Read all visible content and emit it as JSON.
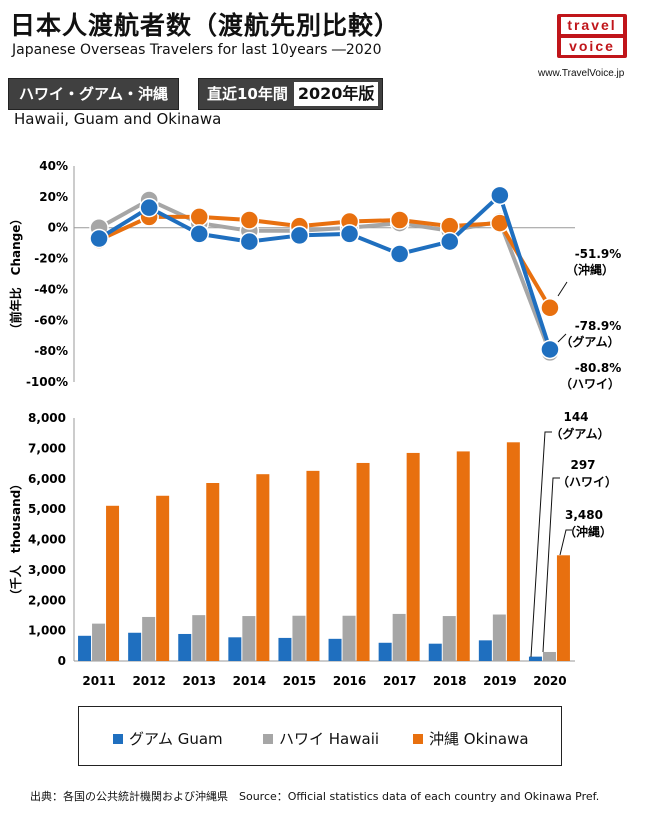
{
  "header": {
    "title": "日本人渡航者数（渡航先別比較）",
    "subtitle": "Japanese Overseas Travelers for last 10years ―2020",
    "region_badge": "ハワイ・グアム・沖縄",
    "period_badge": "直近10年間",
    "edition_badge": "2020年版",
    "region_en": "Hawaii, Guam and Okinawa",
    "logo_line1": "travel",
    "logo_line2": "voice",
    "website": "www.TravelVoice.jp"
  },
  "colors": {
    "guam": "#1f6fbf",
    "hawaii": "#a6a6a6",
    "okinawa": "#e8700f"
  },
  "chart_data": [
    {
      "type": "line",
      "ylabel": "（前年比　Change）",
      "ylim": [
        -100,
        40
      ],
      "yticks": [
        "40%",
        "20%",
        "0%",
        "-20%",
        "-40%",
        "-60%",
        "-80%",
        "-100%"
      ],
      "grid": false,
      "x": [
        "2011",
        "2012",
        "2013",
        "2014",
        "2015",
        "2016",
        "2017",
        "2018",
        "2019",
        "2020"
      ],
      "series": [
        {
          "name": "ハワイ Hawaii",
          "values": [
            0,
            18,
            3,
            -2,
            -2,
            0,
            3,
            -2,
            4,
            -80.8
          ]
        },
        {
          "name": "沖縄 Okinawa",
          "values": [
            -8,
            7,
            7,
            5,
            1,
            4,
            5,
            1,
            3,
            -51.9
          ]
        },
        {
          "name": "グアム Guam",
          "values": [
            -7,
            13,
            -4,
            -9,
            -5,
            -4,
            -17,
            -9,
            21,
            -78.9
          ]
        }
      ],
      "annotations": [
        {
          "value": "-51.9%",
          "label": "（沖縄）"
        },
        {
          "value": "-78.9%",
          "label": "（グアム）"
        },
        {
          "value": "-80.8%",
          "label": "（ハワイ）"
        }
      ]
    },
    {
      "type": "bar",
      "ylabel": "（千人　thousand）",
      "ylim": [
        0,
        8000
      ],
      "yticks": [
        "0",
        "1,000",
        "2,000",
        "3,000",
        "4,000",
        "5,000",
        "6,000",
        "7,000",
        "8,000"
      ],
      "categories": [
        "2011",
        "2012",
        "2013",
        "2014",
        "2015",
        "2016",
        "2017",
        "2018",
        "2019",
        "2020"
      ],
      "series": [
        {
          "name": "グアム Guam",
          "values": [
            830,
            930,
            890,
            780,
            760,
            730,
            600,
            570,
            680,
            144
          ]
        },
        {
          "name": "ハワイ Hawaii",
          "values": [
            1230,
            1450,
            1510,
            1480,
            1490,
            1490,
            1550,
            1480,
            1530,
            297
          ]
        },
        {
          "name": "沖縄 Okinawa",
          "values": [
            5110,
            5440,
            5860,
            6150,
            6260,
            6520,
            6850,
            6900,
            7200,
            3480
          ]
        }
      ],
      "annotations": [
        {
          "value": "144",
          "label": "（グアム）"
        },
        {
          "value": "297",
          "label": "（ハワイ）"
        },
        {
          "value": "3,480",
          "label": "（沖縄）"
        }
      ]
    }
  ],
  "legend": [
    {
      "label": "グアム Guam"
    },
    {
      "label": "ハワイ Hawaii"
    },
    {
      "label": "沖縄 Okinawa"
    }
  ],
  "source": "出典：各国の公共統計機関および沖縄県　Source：Official statistics data of each country and Okinawa Pref."
}
